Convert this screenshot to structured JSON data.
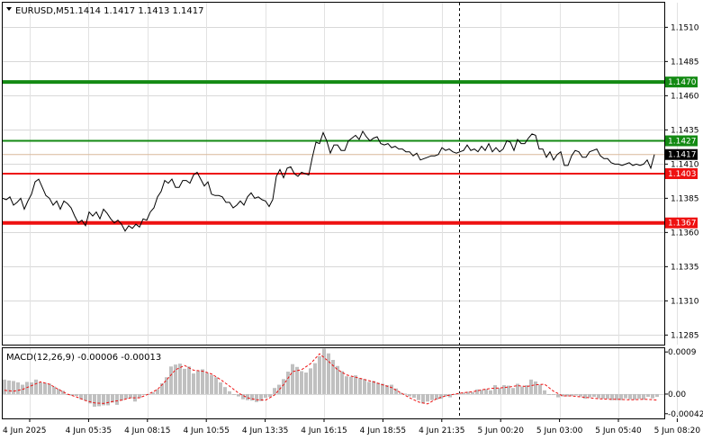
{
  "header": {
    "symbol": "EURUSD,M5",
    "ohlc": "1.1414 1.1417 1.1413 1.1417"
  },
  "chart_data": [
    {
      "type": "line",
      "title": "EURUSD,M5 1.1414 1.1417 1.1413 1.1417",
      "y_ticks": [
        "1.1510",
        "1.1485",
        "1.1460",
        "1.1435",
        "1.1410",
        "1.1385",
        "1.1360",
        "1.1335",
        "1.1310",
        "1.1285"
      ],
      "ylim": [
        1.1278,
        1.1528
      ],
      "x_ticks": [
        "4 Jun 2025",
        "4 Jun 05:35",
        "4 Jun 08:15",
        "4 Jun 10:55",
        "4 Jun 13:35",
        "4 Jun 16:15",
        "4 Jun 18:55",
        "4 Jun 21:35",
        "5 Jun 00:20",
        "5 Jun 03:00",
        "5 Jun 05:40",
        "5 Jun 08:20"
      ],
      "current_price": "1.1417",
      "levels": [
        {
          "value": 1.147,
          "label": "1.1470",
          "color": "#138a13",
          "kind": "resistance"
        },
        {
          "value": 1.1427,
          "label": "1.1427",
          "color": "#138a13",
          "kind": "resistance"
        },
        {
          "value": 1.1403,
          "label": "1.1403",
          "color": "#ee1111",
          "kind": "support"
        },
        {
          "value": 1.1367,
          "label": "1.1367",
          "color": "#ee1111",
          "kind": "support"
        }
      ],
      "series": [
        {
          "x": [
            0,
            4,
            8,
            12,
            16,
            20,
            24,
            28,
            32,
            36,
            40,
            44,
            48,
            52,
            56,
            60,
            64,
            68,
            72,
            76,
            80,
            84,
            88,
            92,
            96,
            100,
            104,
            108,
            112,
            116,
            120,
            124,
            128,
            132,
            136,
            140,
            144,
            148,
            152,
            156,
            160,
            164,
            168,
            172,
            176,
            180,
            184,
            188,
            192,
            196,
            200,
            204,
            208,
            212,
            216,
            220,
            224,
            228,
            232,
            236,
            240,
            244,
            248,
            252,
            256,
            260,
            264,
            268,
            272,
            276,
            280,
            284,
            288,
            292,
            296,
            300,
            304,
            308,
            312,
            316,
            320,
            324,
            328,
            332,
            336,
            340,
            344,
            348,
            352,
            356,
            360,
            364,
            368,
            372,
            376,
            380,
            384,
            388,
            392,
            396,
            400,
            404,
            408,
            412,
            416,
            420,
            424,
            428,
            432,
            436,
            440,
            444,
            448,
            452,
            456,
            460,
            464,
            468,
            472,
            476,
            480,
            484,
            488,
            492,
            496,
            500,
            504,
            508,
            512,
            516,
            520,
            524,
            528,
            532,
            536,
            540,
            544,
            548,
            552,
            556,
            560,
            564,
            568,
            572,
            576,
            580,
            584,
            588,
            592,
            596,
            600,
            604,
            608,
            612,
            616,
            620,
            624,
            628,
            632,
            636,
            640,
            644,
            648,
            652,
            656,
            660,
            664,
            668,
            672,
            676,
            680,
            684,
            688,
            692,
            696,
            700,
            704,
            708,
            712,
            716,
            720,
            724
          ],
          "y": [
            1.1385,
            1.1384,
            1.1386,
            1.138,
            1.1382,
            1.1385,
            1.1377,
            1.1383,
            1.1388,
            1.1397,
            1.1399,
            1.1393,
            1.1387,
            1.1385,
            1.138,
            1.1383,
            1.1377,
            1.1383,
            1.1381,
            1.1378,
            1.1372,
            1.1367,
            1.1369,
            1.1365,
            1.1375,
            1.1372,
            1.1375,
            1.137,
            1.1377,
            1.1374,
            1.137,
            1.1367,
            1.1369,
            1.1366,
            1.1361,
            1.1365,
            1.1363,
            1.1366,
            1.1364,
            1.137,
            1.1369,
            1.1375,
            1.1378,
            1.1386,
            1.139,
            1.1398,
            1.1396,
            1.1399,
            1.1393,
            1.1393,
            1.1398,
            1.1398,
            1.1396,
            1.1402,
            1.1404,
            1.1399,
            1.1394,
            1.1397,
            1.1388,
            1.1387,
            1.1387,
            1.1386,
            1.1382,
            1.1382,
            1.1378,
            1.138,
            1.1383,
            1.138,
            1.1386,
            1.1389,
            1.1385,
            1.1386,
            1.1384,
            1.1383,
            1.1379,
            1.1384,
            1.1401,
            1.1406,
            1.14,
            1.1407,
            1.1408,
            1.1403,
            1.1401,
            1.1404,
            1.1403,
            1.1402,
            1.1415,
            1.1426,
            1.1425,
            1.1433,
            1.1427,
            1.1418,
            1.1424,
            1.1424,
            1.142,
            1.142,
            1.1427,
            1.1429,
            1.1431,
            1.1428,
            1.1434,
            1.143,
            1.1427,
            1.1429,
            1.143,
            1.1425,
            1.1424,
            1.1425,
            1.1422,
            1.1423,
            1.1421,
            1.1421,
            1.1419,
            1.1419,
            1.1416,
            1.1418,
            1.1413,
            1.1414,
            1.1415,
            1.1416,
            1.1416,
            1.1417,
            1.1422,
            1.142,
            1.1421,
            1.1419,
            1.1418,
            1.1419,
            1.142,
            1.1424,
            1.142,
            1.1421,
            1.1419,
            1.1423,
            1.142,
            1.1425,
            1.1419,
            1.1422,
            1.1419,
            1.1421,
            1.1427,
            1.1426,
            1.142,
            1.1428,
            1.1425,
            1.1425,
            1.1429,
            1.1432,
            1.1431,
            1.1421,
            1.1421,
            1.1415,
            1.1419,
            1.1413,
            1.1417,
            1.1419,
            1.1409,
            1.1409,
            1.1416,
            1.142,
            1.1419,
            1.1415,
            1.1415,
            1.1419,
            1.142,
            1.1421,
            1.1416,
            1.1414,
            1.1414,
            1.1411,
            1.141,
            1.141,
            1.1409,
            1.141,
            1.1411,
            1.1409,
            1.141,
            1.1409,
            1.141,
            1.1413,
            1.1407,
            1.1417
          ]
        }
      ]
    },
    {
      "type": "bar",
      "title": "MACD(12,26,9) -0.00006 -0.00013",
      "y_ticks": [
        "0.0009",
        "0.00",
        "-0.00042"
      ],
      "ylim": [
        -0.00052,
        0.00098
      ],
      "series": [
        {
          "name": "MACD",
          "color": "#c0c0c0",
          "x": [
            0,
            5,
            10,
            15,
            20,
            25,
            30,
            35,
            40,
            45,
            50,
            55,
            60,
            65,
            70,
            75,
            80,
            85,
            90,
            95,
            100,
            105,
            110,
            115,
            120,
            125,
            130,
            135,
            140,
            145,
            150,
            155,
            160,
            165,
            170,
            175,
            180,
            185,
            190,
            195,
            200,
            205,
            210,
            215,
            220,
            225,
            230,
            235,
            240,
            245,
            250,
            255,
            260,
            265,
            270,
            275,
            280,
            285,
            290,
            295,
            300,
            305,
            310,
            315,
            320,
            325,
            330,
            335,
            340,
            345,
            350,
            355,
            360,
            365,
            370,
            375,
            380,
            385,
            390,
            395,
            400,
            405,
            410,
            415,
            420,
            425,
            430,
            435,
            440,
            445,
            450,
            455,
            460,
            465,
            470,
            475,
            480,
            485,
            490,
            495,
            500,
            505,
            510,
            515,
            520,
            525,
            530,
            535,
            540,
            545,
            550,
            555,
            560,
            565,
            570,
            575,
            580,
            585,
            590,
            595,
            600,
            605,
            610,
            615,
            620,
            625,
            630,
            635,
            640,
            645,
            650,
            655,
            660,
            665,
            670,
            675,
            680,
            685,
            690,
            695,
            700,
            705,
            710,
            715,
            720,
            725
          ],
          "values": [
            0.00031,
            0.00029,
            0.00028,
            0.00025,
            0.0002,
            0.00026,
            0.00025,
            0.00031,
            0.00025,
            0.00024,
            0.00022,
            0.00016,
            0.00011,
            7e-05,
            -0.0,
            -3e-05,
            -4e-05,
            -0.00011,
            -0.00014,
            -0.0002,
            -0.00027,
            -0.00026,
            -0.00024,
            -0.00024,
            -0.00018,
            -0.00023,
            -0.00014,
            -0.0001,
            -9e-05,
            -0.00016,
            -8e-05,
            -2e-05,
            -2e-05,
            4e-05,
            0.0001,
            0.00023,
            0.00036,
            0.00059,
            0.00063,
            0.00065,
            0.00054,
            0.00059,
            0.00044,
            0.00049,
            0.00053,
            0.00045,
            0.00041,
            0.00036,
            0.00025,
            0.00015,
            6e-05,
            -1e-05,
            -5e-05,
            -0.00011,
            -0.00013,
            -0.00014,
            -0.00017,
            -0.00015,
            -8e-05,
            -6e-05,
            0.00013,
            0.0002,
            0.00032,
            0.00048,
            0.00064,
            0.00058,
            0.00049,
            0.00046,
            0.00055,
            0.00066,
            0.00081,
            0.00097,
            0.00087,
            0.00073,
            0.0006,
            0.00049,
            0.00038,
            0.00037,
            0.0004,
            0.00034,
            0.00032,
            0.00026,
            0.00028,
            0.00024,
            0.00022,
            0.00019,
            0.0002,
            0.00012,
            3e-05,
            1e-05,
            -5e-05,
            -8e-05,
            -0.00013,
            -0.0002,
            -0.00016,
            -0.00013,
            -0.00012,
            -0.0001,
            -5e-05,
            -7e-05,
            -0.0,
            2e-05,
            3e-05,
            5e-05,
            4e-05,
            0.0001,
            9e-05,
            0.00011,
            8e-05,
            0.00019,
            0.00013,
            0.00019,
            0.00018,
            0.00013,
            0.00022,
            0.00016,
            0.00019,
            0.00031,
            0.00027,
            0.0002,
            8e-05,
            -0.0,
            -2e-05,
            -7e-05,
            -5e-05,
            -5e-05,
            -4e-05,
            -3e-05,
            -5e-05,
            -0.0001,
            -7e-05,
            -6e-05,
            -9e-05,
            -0.0001,
            -0.0001,
            -0.00013,
            -0.00013,
            -0.00013,
            -9e-05,
            -0.00011,
            -0.00012,
            -0.0001,
            -0.00012,
            -6e-05,
            -9e-05,
            -6e-05
          ]
        },
        {
          "name": "Signal",
          "color": "#ee1111",
          "x": [
            0,
            10,
            20,
            30,
            40,
            50,
            60,
            70,
            80,
            90,
            100,
            110,
            120,
            130,
            140,
            150,
            160,
            170,
            180,
            190,
            200,
            210,
            220,
            230,
            240,
            250,
            260,
            270,
            280,
            290,
            300,
            310,
            320,
            330,
            340,
            350,
            360,
            370,
            380,
            390,
            400,
            410,
            420,
            430,
            440,
            450,
            460,
            470,
            480,
            490,
            500,
            510,
            520,
            530,
            540,
            550,
            560,
            570,
            580,
            590,
            600,
            610,
            620,
            630,
            640,
            650,
            660,
            670,
            680,
            690,
            700,
            710,
            720,
            725
          ],
          "values": [
            8e-05,
            6e-05,
            0.0001,
            0.00018,
            0.00026,
            0.00021,
            0.0001,
            0.0,
            -6e-05,
            -0.00014,
            -0.00019,
            -0.0002,
            -0.00016,
            -0.00013,
            -8e-05,
            -8e-05,
            0.0,
            0.0001,
            0.0003,
            0.00052,
            0.00061,
            0.00051,
            0.00049,
            0.00043,
            0.00031,
            0.00017,
            2e-05,
            -8e-05,
            -0.00012,
            -0.00013,
            -2e-05,
            0.0002,
            0.00048,
            0.00052,
            0.00065,
            0.00086,
            0.0007,
            0.00052,
            0.00041,
            0.00036,
            0.00031,
            0.00026,
            0.0002,
            0.00014,
            3e-05,
            -8e-05,
            -0.00017,
            -0.00021,
            -0.0001,
            -4e-05,
            0.0,
            3e-05,
            5e-05,
            9e-05,
            0.00012,
            0.00013,
            0.00015,
            0.00018,
            0.00016,
            0.0002,
            0.00021,
            6e-05,
            -4e-05,
            -4e-05,
            -6e-05,
            -8e-05,
            -0.0001,
            -0.00011,
            -0.00011,
            -0.00012,
            -0.00012,
            -0.00011,
            -0.00012,
            -0.00013
          ]
        }
      ]
    }
  ]
}
